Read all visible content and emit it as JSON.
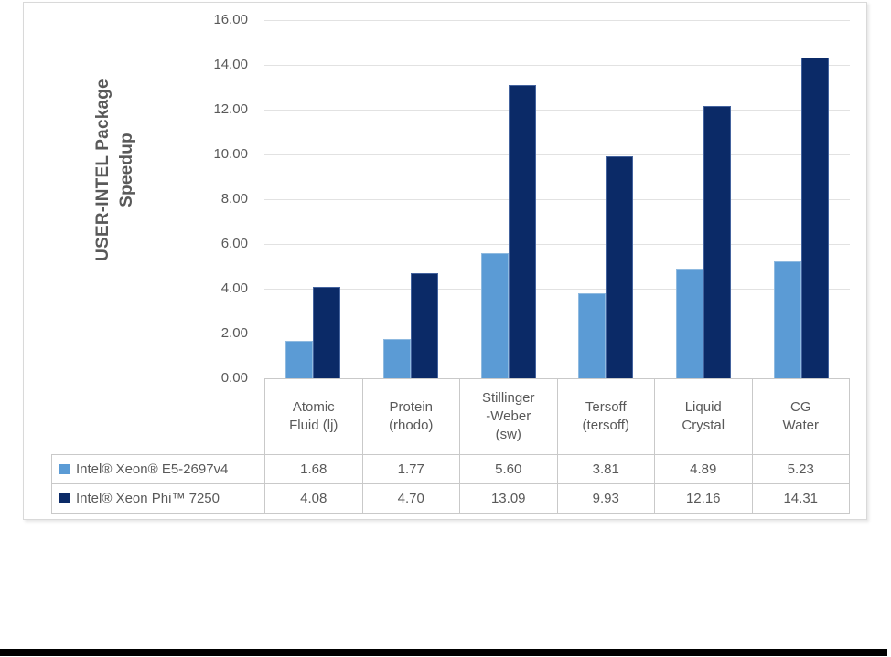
{
  "chart_data": {
    "type": "bar",
    "title": "",
    "y_axis": {
      "label_lines": [
        "USER-INTEL Package",
        "Speedup"
      ],
      "min": 0,
      "max": 16,
      "tick_step": 2,
      "tick_labels": [
        "16.00",
        "14.00",
        "12.00",
        "10.00",
        "8.00",
        "6.00",
        "4.00",
        "2.00",
        "0.00"
      ]
    },
    "categories": [
      {
        "name": "Atomic Fluid (lj)",
        "lines": [
          "Atomic",
          "Fluid (lj)"
        ]
      },
      {
        "name": "Protein (rhodo)",
        "lines": [
          "Protein",
          "(rhodo)"
        ]
      },
      {
        "name": "Stillinger-Weber (sw)",
        "lines": [
          "Stillinger",
          "-Weber",
          "(sw)"
        ]
      },
      {
        "name": "Tersoff (tersoff)",
        "lines": [
          "Tersoff",
          "(tersoff)"
        ]
      },
      {
        "name": "Liquid Crystal",
        "lines": [
          "Liquid",
          "Crystal"
        ]
      },
      {
        "name": "CG Water",
        "lines": [
          "CG",
          "Water"
        ]
      }
    ],
    "series": [
      {
        "name": "Intel® Xeon® E5-2697v4",
        "color": "#5b9bd5",
        "border_color": "#8fbae0",
        "values": [
          1.68,
          1.77,
          5.6,
          3.81,
          4.89,
          5.23
        ],
        "value_labels": [
          "1.68",
          "1.77",
          "5.60",
          "3.81",
          "4.89",
          "5.23"
        ]
      },
      {
        "name": "Intel® Xeon Phi™ 7250",
        "color": "#0b2a67",
        "border_color": "#44639e",
        "values": [
          4.08,
          4.7,
          13.09,
          9.93,
          12.16,
          14.31
        ],
        "value_labels": [
          "4.08",
          "4.70",
          "13.09",
          "9.93",
          "12.16",
          "14.31"
        ]
      }
    ],
    "legend_position": "data-table-left",
    "grid": "horizontal"
  },
  "colors": {
    "text": "#595959",
    "gridline": "#e2e2e2",
    "table_border": "#c9c9c9",
    "frame_border": "#d9d9d9",
    "series1": "#5b9bd5",
    "series2": "#0b2a67",
    "bottom_bar": "#000000",
    "background": "#ffffff"
  }
}
